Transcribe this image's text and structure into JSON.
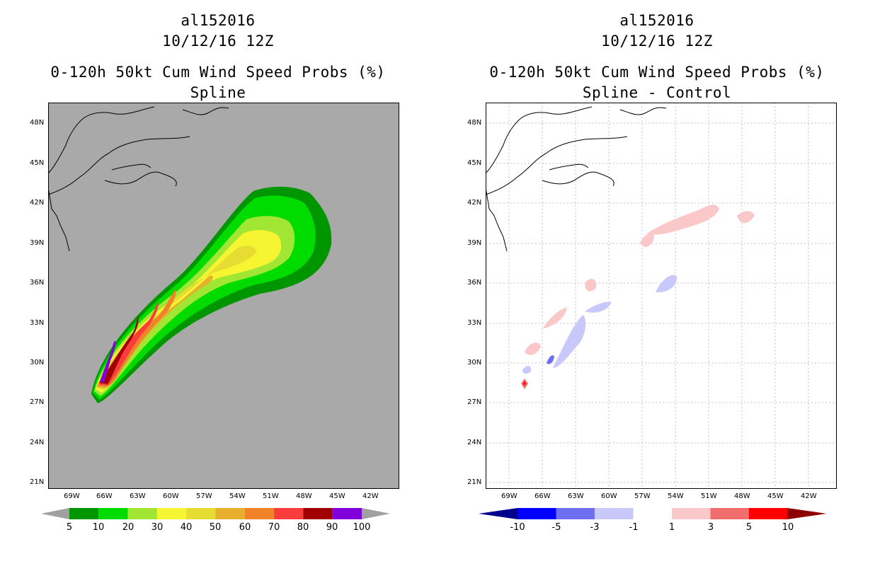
{
  "left": {
    "title": [
      "al152016",
      "10/12/16 12Z",
      "0-120h 50kt Cum Wind Speed Probs (%)",
      "Spline"
    ],
    "colorbar": {
      "labels": [
        "5",
        "10",
        "20",
        "30",
        "40",
        "50",
        "60",
        "70",
        "80",
        "90",
        "100"
      ],
      "colors": [
        "#009600",
        "#00dc00",
        "#a0e632",
        "#f5f532",
        "#e6dc32",
        "#e6af2d",
        "#f08228",
        "#fa3c3c",
        "#a00000",
        "#8200dc"
      ],
      "arrow_color": "#a0a0a0"
    },
    "background": "#a9a9a9"
  },
  "right": {
    "title": [
      "al152016",
      "10/12/16 12Z",
      "0-120h 50kt Cum Wind Speed Probs (%)",
      "Spline - Control"
    ],
    "colorbar": {
      "labels": [
        "-10",
        "-5",
        "-3",
        "-1",
        "1",
        "3",
        "5",
        "10"
      ],
      "colors": [
        "#00008c",
        "#0000ff",
        "#6e6ef0",
        "#c8c8fa",
        "#ffffff",
        "#fac8c8",
        "#f06e6e",
        "#ff0000",
        "#8c0000"
      ]
    },
    "background": "#ffffff"
  },
  "axes": {
    "lon_labels": [
      "69W",
      "66W",
      "63W",
      "60W",
      "57W",
      "54W",
      "51W",
      "48W",
      "45W",
      "42W"
    ],
    "lat_labels": [
      "48N",
      "45N",
      "42N",
      "39N",
      "36N",
      "33N",
      "30N",
      "27N",
      "24N",
      "21N"
    ]
  }
}
